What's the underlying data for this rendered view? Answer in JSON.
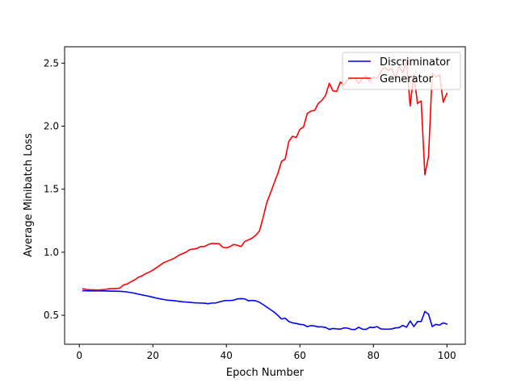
{
  "chart_data": {
    "type": "line",
    "title": "",
    "xlabel": "Epoch Number",
    "ylabel": "Average Minibatch Loss",
    "xlim": [
      -4,
      105
    ],
    "ylim": [
      0.27,
      2.63
    ],
    "xticks": [
      0,
      20,
      40,
      60,
      80,
      100
    ],
    "yticks": [
      0.5,
      1.0,
      1.5,
      2.0,
      2.5
    ],
    "xtick_labels": [
      "0",
      "20",
      "40",
      "60",
      "80",
      "100"
    ],
    "ytick_labels": [
      "0.5",
      "1.0",
      "1.5",
      "2.0",
      "2.5"
    ],
    "grid": false,
    "legend_position": "top-right",
    "series": [
      {
        "name": "Discriminator",
        "color": "#0000ff",
        "x": [
          1,
          2,
          3,
          4,
          5,
          6,
          7,
          8,
          9,
          10,
          11,
          12,
          13,
          14,
          15,
          16,
          17,
          18,
          19,
          20,
          21,
          22,
          23,
          24,
          25,
          26,
          27,
          28,
          29,
          30,
          31,
          32,
          33,
          34,
          35,
          36,
          37,
          38,
          39,
          40,
          41,
          42,
          43,
          44,
          45,
          46,
          47,
          48,
          49,
          50,
          51,
          52,
          53,
          54,
          55,
          56,
          57,
          58,
          59,
          60,
          61,
          62,
          63,
          64,
          65,
          66,
          67,
          68,
          69,
          70,
          71,
          72,
          73,
          74,
          75,
          76,
          77,
          78,
          79,
          80,
          81,
          82,
          83,
          84,
          85,
          86,
          87,
          88,
          89,
          90,
          91,
          92,
          93,
          94,
          95,
          96,
          97,
          98,
          99,
          100
        ],
        "values": [
          0.695,
          0.694,
          0.693,
          0.693,
          0.693,
          0.693,
          0.693,
          0.692,
          0.692,
          0.691,
          0.69,
          0.688,
          0.685,
          0.68,
          0.675,
          0.668,
          0.662,
          0.656,
          0.65,
          0.643,
          0.636,
          0.63,
          0.625,
          0.62,
          0.618,
          0.615,
          0.611,
          0.607,
          0.605,
          0.603,
          0.6,
          0.598,
          0.597,
          0.596,
          0.592,
          0.597,
          0.597,
          0.605,
          0.613,
          0.617,
          0.617,
          0.62,
          0.63,
          0.632,
          0.63,
          0.615,
          0.618,
          0.615,
          0.603,
          0.585,
          0.565,
          0.545,
          0.525,
          0.5,
          0.47,
          0.477,
          0.45,
          0.44,
          0.435,
          0.428,
          0.425,
          0.41,
          0.418,
          0.415,
          0.408,
          0.408,
          0.404,
          0.388,
          0.395,
          0.392,
          0.39,
          0.4,
          0.398,
          0.388,
          0.387,
          0.405,
          0.39,
          0.388,
          0.405,
          0.403,
          0.41,
          0.392,
          0.39,
          0.39,
          0.392,
          0.4,
          0.402,
          0.42,
          0.405,
          0.455,
          0.41,
          0.45,
          0.45,
          0.53,
          0.508,
          0.41,
          0.428,
          0.422,
          0.44,
          0.43
        ]
      },
      {
        "name": "Generator",
        "color": "#ff0000",
        "x": [
          1,
          2,
          3,
          4,
          5,
          6,
          7,
          8,
          9,
          10,
          11,
          12,
          13,
          14,
          15,
          16,
          17,
          18,
          19,
          20,
          21,
          22,
          23,
          24,
          25,
          26,
          27,
          28,
          29,
          30,
          31,
          32,
          33,
          34,
          35,
          36,
          37,
          38,
          39,
          40,
          41,
          42,
          43,
          44,
          45,
          46,
          47,
          48,
          49,
          50,
          51,
          52,
          53,
          54,
          55,
          56,
          57,
          58,
          59,
          60,
          61,
          62,
          63,
          64,
          65,
          66,
          67,
          68,
          69,
          70,
          71,
          72,
          73,
          74,
          75,
          76,
          77,
          78,
          79,
          80,
          81,
          82,
          83,
          84,
          85,
          86,
          87,
          88,
          89,
          90,
          91,
          92,
          93,
          94,
          95,
          96,
          97,
          98,
          99,
          100
        ],
        "values": [
          0.71,
          0.705,
          0.702,
          0.702,
          0.7,
          0.702,
          0.705,
          0.71,
          0.712,
          0.712,
          0.715,
          0.74,
          0.748,
          0.765,
          0.78,
          0.8,
          0.812,
          0.83,
          0.842,
          0.858,
          0.878,
          0.898,
          0.918,
          0.93,
          0.942,
          0.955,
          0.975,
          0.988,
          1.0,
          1.02,
          1.025,
          1.03,
          1.045,
          1.045,
          1.06,
          1.07,
          1.068,
          1.068,
          1.04,
          1.035,
          1.045,
          1.062,
          1.055,
          1.045,
          1.085,
          1.098,
          1.112,
          1.135,
          1.168,
          1.275,
          1.395,
          1.47,
          1.55,
          1.625,
          1.72,
          1.74,
          1.88,
          1.92,
          1.91,
          1.975,
          1.995,
          2.1,
          2.12,
          2.125,
          2.18,
          2.205,
          2.245,
          2.34,
          2.28,
          2.275,
          2.35,
          2.325,
          2.37,
          2.38,
          2.38,
          2.34,
          2.375,
          2.4,
          2.355,
          2.39,
          2.38,
          2.43,
          2.47,
          2.44,
          2.46,
          2.38,
          2.48,
          2.42,
          2.52,
          2.16,
          2.41,
          2.18,
          2.2,
          1.615,
          1.76,
          2.42,
          2.39,
          2.41,
          2.19,
          2.26
        ]
      }
    ]
  }
}
